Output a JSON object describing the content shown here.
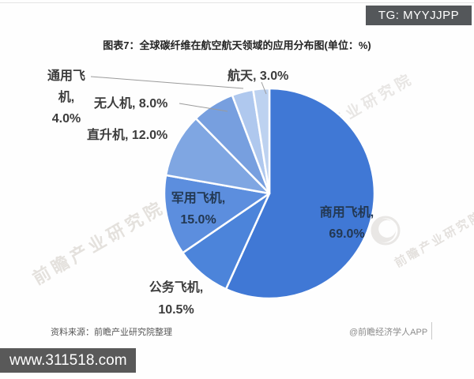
{
  "overlay": {
    "tg_badge": "TG: MYYJJPP",
    "footer_url": "www.311518.com"
  },
  "chart_data": {
    "type": "pie",
    "title": "图表7：全球碳纤维在航空航天领域的应用分布图(单位：%)",
    "unit": "%",
    "start_angle_deg": 0,
    "direction": "clockwise",
    "legend": "none",
    "slices": [
      {
        "label": "商用飞机",
        "value": 69.0,
        "color": "#4078D5",
        "label_position": "inside",
        "lines": [
          "商用飞机,",
          "69.0%"
        ]
      },
      {
        "label": "公务飞机",
        "value": 10.5,
        "color": "#4C84DA",
        "label_position": "outside",
        "lines": [
          "公务飞机,",
          "10.5%"
        ]
      },
      {
        "label": "军用飞机",
        "value": 15.0,
        "color": "#5C8EDE",
        "label_position": "inside",
        "lines": [
          "军用飞机,",
          "15.0%"
        ]
      },
      {
        "label": "直升机",
        "value": 12.0,
        "color": "#7FA6E2",
        "label_position": "outside",
        "lines": [
          "直升机, 12.0%"
        ]
      },
      {
        "label": "无人机",
        "value": 8.0,
        "color": "#779FDF",
        "label_position": "outside",
        "lines": [
          "无人机, 8.0%"
        ]
      },
      {
        "label": "通用飞机",
        "value": 4.0,
        "color": "#AFC8EE",
        "label_position": "outside",
        "lines": [
          "通用飞",
          "机,",
          "4.0%"
        ]
      },
      {
        "label": "航天",
        "value": 3.0,
        "color": "#BDD2F0",
        "label_position": "outside",
        "lines": [
          "航天, 3.0%"
        ]
      }
    ]
  },
  "footer": {
    "source_note": "资料来源：前瞻产业研究院整理",
    "credit": "@前瞻经济学人APP"
  },
  "watermark": {
    "text": "前瞻产业研究院",
    "logo": "qianzhan-logo"
  }
}
